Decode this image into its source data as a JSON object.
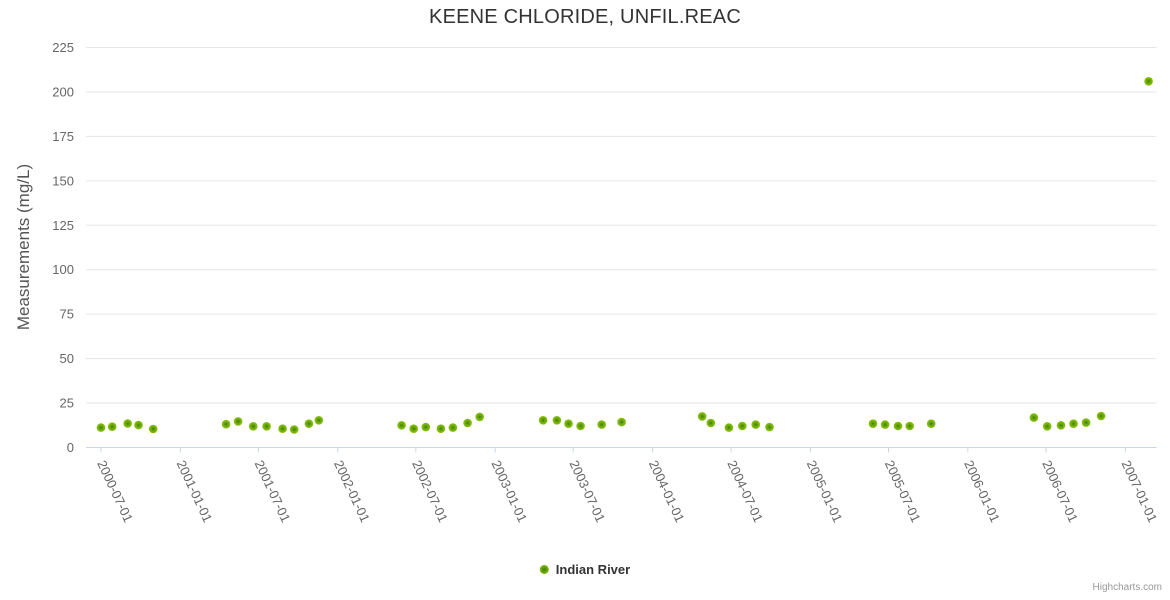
{
  "chart": {
    "series_name": "Indian River",
    "credits": "Highcharts.com"
  },
  "chart_data": {
    "type": "scatter",
    "title": "KEENE CHLORIDE, UNFIL.REAC",
    "xlabel": "",
    "ylabel": "Measurements (mg/L)",
    "ylim": [
      0,
      225
    ],
    "y_ticks": [
      0,
      25,
      50,
      75,
      100,
      125,
      150,
      175,
      200,
      225
    ],
    "x_ticks": [
      "2000-07-01",
      "2001-01-01",
      "2001-07-01",
      "2002-01-01",
      "2002-07-01",
      "2003-01-01",
      "2003-07-01",
      "2004-01-01",
      "2004-07-01",
      "2005-01-01",
      "2005-07-01",
      "2006-01-01",
      "2006-07-01",
      "2007-01-01"
    ],
    "x_tick_rotation": 65,
    "grid": "horizontal-only",
    "legend_position": "bottom-center",
    "grid_color": "#e6e6e6",
    "axis_line_color": "#ccd6eb",
    "label_color": "#666666",
    "marker_color": "#72ad08",
    "marker_core_color": "#3f7d02",
    "marker_edge_color": "#85c30e",
    "series": [
      {
        "name": "Indian River",
        "points": [
          {
            "x": "2000-07-01",
            "y": 11.2
          },
          {
            "x": "2000-07-27",
            "y": 11.7
          },
          {
            "x": "2000-09-01",
            "y": 13.5
          },
          {
            "x": "2000-09-26",
            "y": 12.6
          },
          {
            "x": "2000-10-30",
            "y": 10.4
          },
          {
            "x": "2001-04-17",
            "y": 13.1
          },
          {
            "x": "2001-05-15",
            "y": 14.7
          },
          {
            "x": "2001-06-19",
            "y": 11.9
          },
          {
            "x": "2001-07-20",
            "y": 11.9
          },
          {
            "x": "2001-08-26",
            "y": 10.6
          },
          {
            "x": "2001-09-22",
            "y": 10.1
          },
          {
            "x": "2001-10-26",
            "y": 13.4
          },
          {
            "x": "2001-11-18",
            "y": 15.3
          },
          {
            "x": "2002-05-29",
            "y": 12.5
          },
          {
            "x": "2002-06-26",
            "y": 10.6
          },
          {
            "x": "2002-07-24",
            "y": 11.5
          },
          {
            "x": "2002-08-28",
            "y": 10.6
          },
          {
            "x": "2002-09-25",
            "y": 11.2
          },
          {
            "x": "2002-10-29",
            "y": 13.8
          },
          {
            "x": "2002-11-26",
            "y": 17.2
          },
          {
            "x": "2003-04-22",
            "y": 15.3
          },
          {
            "x": "2003-05-24",
            "y": 15.3
          },
          {
            "x": "2003-06-20",
            "y": 13.4
          },
          {
            "x": "2003-07-18",
            "y": 12.1
          },
          {
            "x": "2003-09-05",
            "y": 12.9
          },
          {
            "x": "2003-10-21",
            "y": 14.3
          },
          {
            "x": "2004-04-25",
            "y": 17.5
          },
          {
            "x": "2004-05-15",
            "y": 13.8
          },
          {
            "x": "2004-06-26",
            "y": 11.2
          },
          {
            "x": "2004-07-27",
            "y": 12.1
          },
          {
            "x": "2004-08-27",
            "y": 12.9
          },
          {
            "x": "2004-09-28",
            "y": 11.5
          },
          {
            "x": "2005-05-26",
            "y": 13.4
          },
          {
            "x": "2005-06-23",
            "y": 12.9
          },
          {
            "x": "2005-07-23",
            "y": 12.1
          },
          {
            "x": "2005-08-19",
            "y": 12.1
          },
          {
            "x": "2005-10-08",
            "y": 13.4
          },
          {
            "x": "2006-06-03",
            "y": 16.8
          },
          {
            "x": "2006-07-04",
            "y": 11.9
          },
          {
            "x": "2006-08-05",
            "y": 12.5
          },
          {
            "x": "2006-09-03",
            "y": 13.4
          },
          {
            "x": "2006-10-02",
            "y": 14.0
          },
          {
            "x": "2006-11-06",
            "y": 17.7
          },
          {
            "x": "2007-02-24",
            "y": 206
          }
        ]
      }
    ]
  }
}
